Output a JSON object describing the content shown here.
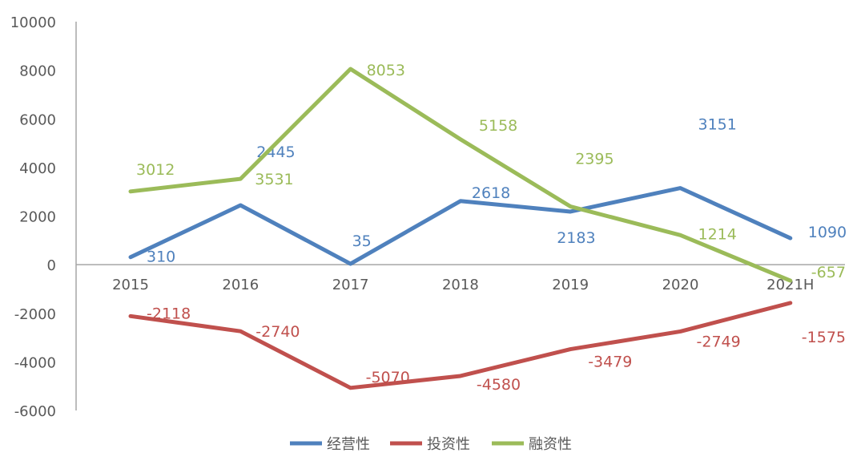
{
  "chart_data": {
    "type": "line",
    "title": "",
    "xlabel": "",
    "ylabel": "",
    "categories": [
      "2015",
      "2016",
      "2017",
      "2018",
      "2019",
      "2020",
      "2021H"
    ],
    "ylim": [
      -6000,
      10000
    ],
    "yticks": [
      10000,
      8000,
      6000,
      4000,
      2000,
      0,
      -2000,
      -4000,
      -6000
    ],
    "grid": false,
    "legend_position": "bottom",
    "series": [
      {
        "name": "经营性",
        "color": "#4f81bd",
        "values": [
          310,
          2445,
          35,
          2618,
          2183,
          3151,
          1090
        ]
      },
      {
        "name": "投资性",
        "color": "#c0504d",
        "values": [
          -2118,
          -2740,
          -5070,
          -4580,
          -3479,
          -2749,
          -1575
        ]
      },
      {
        "name": "融资性",
        "color": "#9bbb59",
        "values": [
          3012,
          3531,
          8053,
          5158,
          2395,
          1214,
          -657
        ]
      }
    ]
  }
}
